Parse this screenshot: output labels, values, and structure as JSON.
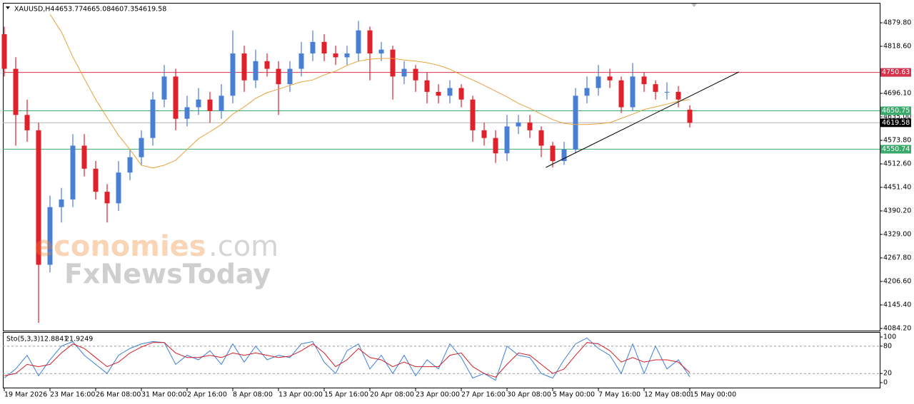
{
  "chart_data": [
    {
      "type": "candlestick",
      "title": "XAUUSD,H4",
      "categories": [
        "19 Mar 2026",
        null,
        null,
        null,
        "23 Mar 16:00",
        null,
        null,
        null,
        "26 Mar 08:00",
        null,
        null,
        null,
        "31 Mar 00:00",
        null,
        null,
        null,
        "2 Apr 16:00",
        null,
        null,
        null,
        "8 Apr 08:00",
        null,
        null,
        null,
        "13 Apr 00:00",
        null,
        null,
        null,
        "15 Apr 16:00",
        null,
        null,
        null,
        "20 Apr 08:00",
        null,
        null,
        null,
        "23 Apr 00:00",
        null,
        null,
        null,
        "27 Apr 16:00",
        null,
        null,
        null,
        "30 Apr 08:00",
        null,
        null,
        null,
        "5 May 00:00",
        null,
        null,
        null,
        "7 May 16:00",
        null,
        null,
        null,
        "12 May 08:00",
        null,
        null,
        null,
        "15 May 00:00"
      ],
      "open": [
        4850,
        4760,
        4640,
        4600,
        4250,
        4400,
        4420,
        4560,
        4500,
        4440,
        4410,
        4490,
        4530,
        4580,
        4680,
        4740,
        4630,
        4660,
        4680,
        4650,
        4690,
        4800,
        4730,
        4780,
        4760,
        4720,
        4760,
        4800,
        4830,
        4800,
        4790,
        4800,
        4860,
        4800,
        4810,
        4740,
        4760,
        4730,
        4700,
        4690,
        4710,
        4680,
        4600,
        4580,
        4540,
        4610,
        4620,
        4600,
        4560,
        4520,
        4550,
        4690,
        4710,
        4740,
        4730,
        4660,
        4740,
        4720,
        4700,
        4700,
        4653.77
      ],
      "high": [
        4870,
        4790,
        4680,
        4620,
        4430,
        4450,
        4590,
        4590,
        4520,
        4460,
        4520,
        4550,
        4600,
        4700,
        4770,
        4760,
        4690,
        4710,
        4700,
        4720,
        4860,
        4820,
        4810,
        4800,
        4780,
        4780,
        4830,
        4860,
        4850,
        4820,
        4820,
        4885,
        4870,
        4830,
        4820,
        4780,
        4770,
        4750,
        4720,
        4730,
        4720,
        4690,
        4620,
        4600,
        4640,
        4640,
        4640,
        4610,
        4570,
        4570,
        4710,
        4740,
        4770,
        4760,
        4740,
        4775,
        4750,
        4730,
        4725,
        4715,
        4665.08
      ],
      "low": [
        4740,
        4560,
        4570,
        4099,
        4230,
        4360,
        4400,
        4480,
        4420,
        4360,
        4390,
        4470,
        4510,
        4560,
        4660,
        4600,
        4610,
        4640,
        4620,
        4630,
        4670,
        4700,
        4710,
        4740,
        4640,
        4700,
        4740,
        4780,
        4780,
        4770,
        4770,
        4780,
        4730,
        4780,
        4680,
        4720,
        4700,
        4670,
        4670,
        4670,
        4660,
        4570,
        4560,
        4515,
        4520,
        4590,
        4580,
        4530,
        4503,
        4510,
        4540,
        4670,
        4690,
        4710,
        4645,
        4650,
        4700,
        4680,
        4680,
        4660,
        4607.35
      ],
      "close": [
        4760,
        4640,
        4600,
        4250,
        4400,
        4420,
        4560,
        4500,
        4440,
        4410,
        4490,
        4530,
        4580,
        4680,
        4740,
        4630,
        4660,
        4680,
        4650,
        4690,
        4800,
        4730,
        4780,
        4760,
        4720,
        4760,
        4800,
        4830,
        4800,
        4790,
        4800,
        4860,
        4800,
        4810,
        4740,
        4760,
        4730,
        4700,
        4690,
        4710,
        4680,
        4600,
        4580,
        4540,
        4610,
        4620,
        4600,
        4560,
        4520,
        4550,
        4690,
        4710,
        4740,
        4730,
        4660,
        4740,
        4720,
        4700,
        4700,
        4680,
        4619.58
      ],
      "up_color": "#4a7fd4",
      "down_color": "#e0202a",
      "ma": {
        "color": "#e8a33a",
        "values": [
          null,
          null,
          null,
          null,
          4902,
          4856,
          4791,
          4735,
          4680,
          4633,
          4587,
          4550,
          4509,
          4502,
          4509,
          4522,
          4550,
          4578,
          4596,
          4615,
          4642,
          4661,
          4683,
          4698,
          4707,
          4717,
          4726,
          4731,
          4744,
          4754,
          4769,
          4780,
          4785,
          4787,
          4787,
          4783,
          4780,
          4776,
          4769,
          4759,
          4744,
          4731,
          4717,
          4702,
          4687,
          4670,
          4657,
          4642,
          4628,
          4618,
          4615,
          4615,
          4617,
          4620,
          4631,
          4642,
          4654,
          4661,
          4668,
          4676,
          4680
        ]
      },
      "hlines": [
        {
          "value": 4750.63,
          "color": "#d6304a"
        },
        {
          "value": 4650.75,
          "color": "#3aaa6a"
        },
        {
          "value": 4550.74,
          "color": "#3aaa6a"
        }
      ],
      "trendline": {
        "x": [
          47.4,
          64.3
        ],
        "y": [
          4503.3,
          4751.8
        ],
        "color": "#000000"
      },
      "xlim": [
        -0.125,
        76.625
      ],
      "ylim": [
        4078.6,
        4931.7
      ],
      "yticks": [
        {
          "value": 4879.8,
          "label": "4879.80"
        },
        {
          "value": 4818.6,
          "label": "4818.60"
        },
        {
          "value": 4696.1,
          "label": "4696.10"
        },
        {
          "value": 4635.0,
          "label": "4635.00"
        },
        {
          "value": 4573.8,
          "label": "4573.80"
        },
        {
          "value": 4512.6,
          "label": "4512.60"
        },
        {
          "value": 4451.4,
          "label": "4451.40"
        },
        {
          "value": 4390.2,
          "label": "4390.20"
        },
        {
          "value": 4329.0,
          "label": "4329.00"
        },
        {
          "value": 4267.8,
          "label": "4267.80"
        },
        {
          "value": 4206.6,
          "label": "4206.60"
        },
        {
          "value": 4145.4,
          "label": "4145.40"
        },
        {
          "value": 4084.2,
          "label": "4084.20"
        }
      ],
      "watermark": [
        "economies",
        ".com",
        "FxNewsToday"
      ]
    },
    {
      "type": "line",
      "title": "Sto(5,3,3)",
      "series": [
        {
          "color": "#3f7fd8",
          "values": [
            10,
            30,
            60,
            15,
            50,
            80,
            90,
            60,
            40,
            20,
            60,
            75,
            85,
            90,
            88,
            40,
            60,
            50,
            70,
            40,
            85,
            45,
            80,
            50,
            60,
            55,
            85,
            90,
            45,
            20,
            70,
            85,
            30,
            60,
            20,
            60,
            15,
            50,
            30,
            85,
            55,
            10,
            20,
            5,
            80,
            60,
            55,
            20,
            10,
            50,
            85,
            98,
            75,
            60,
            20,
            85,
            20,
            80,
            30,
            50,
            12.8841
          ]
        },
        {
          "color": "#d0202a",
          "values": [
            15,
            20,
            40,
            35,
            40,
            65,
            85,
            75,
            55,
            35,
            45,
            65,
            78,
            88,
            88,
            65,
            55,
            55,
            60,
            55,
            65,
            60,
            65,
            60,
            55,
            58,
            70,
            85,
            65,
            35,
            50,
            75,
            55,
            50,
            35,
            45,
            35,
            35,
            35,
            60,
            65,
            35,
            20,
            12,
            40,
            65,
            60,
            40,
            20,
            30,
            60,
            88,
            85,
            70,
            45,
            55,
            45,
            50,
            50,
            45,
            21.9249
          ]
        }
      ],
      "levels": [
        20,
        80
      ],
      "xlim": [
        -0.125,
        76.625
      ],
      "ylim": [
        -10.9,
        109.4
      ],
      "yticks": [
        0,
        20,
        80,
        100
      ]
    }
  ]
}
